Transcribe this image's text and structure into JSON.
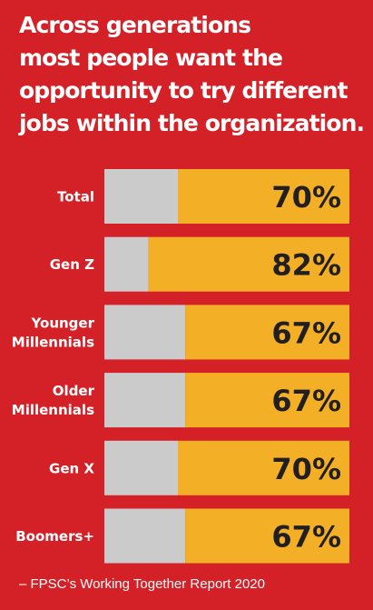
{
  "title_lines": [
    "Across generations",
    "most people want the",
    "opportunity to try different",
    "jobs within the organization."
  ],
  "source": "– FPSC’s Working Together Report 2020",
  "colors": {
    "background": "#d42027",
    "remainder": "#cbcbcb",
    "value": "#f3b027",
    "value_text": "#231f20",
    "label_text": "#ffffff"
  },
  "chart_data": {
    "type": "bar",
    "orientation": "horizontal",
    "stacked_to": 100,
    "categories": [
      [
        "Total"
      ],
      [
        "Gen Z"
      ],
      [
        "Younger",
        "Millennials"
      ],
      [
        "Older",
        "Millennials"
      ],
      [
        "Gen X"
      ],
      [
        "Boomers+"
      ]
    ],
    "values": [
      70,
      82,
      67,
      67,
      70,
      67
    ],
    "value_labels": [
      "70%",
      "82%",
      "67%",
      "67%",
      "70%",
      "67%"
    ],
    "xlim": [
      0,
      100
    ]
  }
}
